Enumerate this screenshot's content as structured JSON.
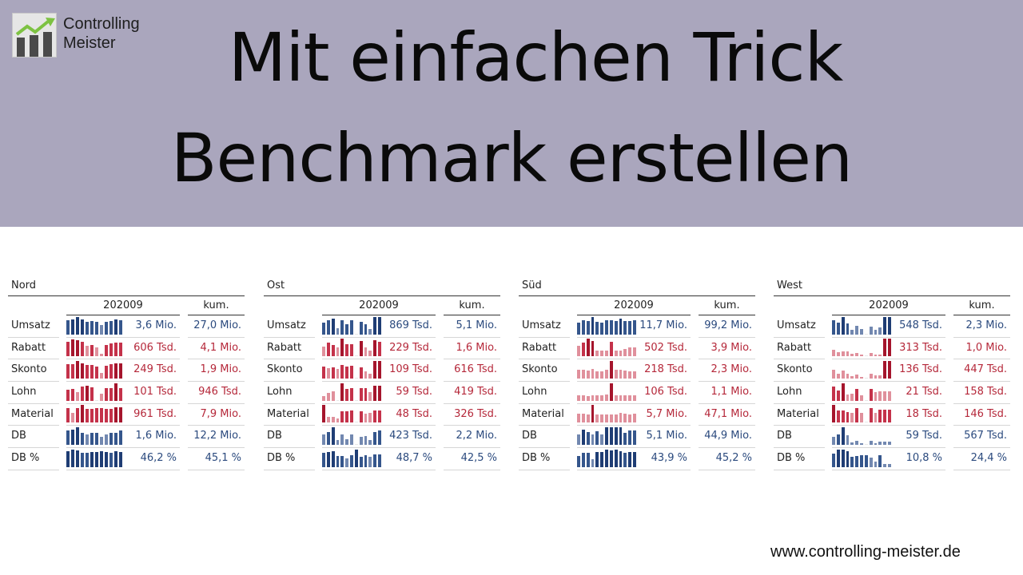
{
  "logo": {
    "line1": "Controlling",
    "line2": "Meister"
  },
  "title": {
    "line1": "Mit einfachen Trick",
    "line2": "Benchmark erstellen"
  },
  "colors": {
    "banner": "#aaa6bd",
    "blue_dark": "#1f3d74",
    "blue_light": "#7288b0",
    "red_dark": "#a5152c",
    "red_light": "#e0909c",
    "text_pos": "#2b4a7e",
    "text_neg": "#b5283a"
  },
  "panels": [
    {
      "name": "Nord",
      "period": "202009",
      "kum_label": "kum.",
      "rows": [
        {
          "label": "Umsatz",
          "value": "3,6 Mio.",
          "kum": "27,0 Mio.",
          "sign": "pos",
          "bars": [
            80,
            88,
            100,
            85,
            72,
            76,
            72,
            55,
            72,
            76,
            86,
            82
          ]
        },
        {
          "label": "Rabatt",
          "value": "606 Tsd.",
          "kum": "4,1 Mio.",
          "sign": "neg",
          "bars": [
            80,
            95,
            92,
            82,
            58,
            62,
            50,
            15,
            62,
            72,
            76,
            76
          ]
        },
        {
          "label": "Skonto",
          "value": "249 Tsd.",
          "kum": "1,9 Mio.",
          "sign": "neg",
          "bars": [
            82,
            82,
            100,
            86,
            76,
            76,
            70,
            30,
            72,
            84,
            88,
            88
          ]
        },
        {
          "label": "Lohn",
          "value": "101 Tsd.",
          "kum": "946 Tsd.",
          "sign": "neg",
          "bars": [
            64,
            66,
            50,
            82,
            88,
            78,
            0,
            42,
            72,
            72,
            100,
            72
          ]
        },
        {
          "label": "Material",
          "value": "961 Tsd.",
          "kum": "7,9 Mio.",
          "sign": "neg",
          "bars": [
            80,
            56,
            84,
            100,
            76,
            76,
            82,
            80,
            76,
            76,
            86,
            86
          ]
        },
        {
          "label": "DB",
          "value": "1,6 Mio.",
          "kum": "12,2 Mio.",
          "sign": "pos",
          "bars": [
            80,
            88,
            100,
            70,
            58,
            68,
            66,
            46,
            58,
            68,
            66,
            82
          ]
        },
        {
          "label": "DB %",
          "value": "46,2 %",
          "kum": "45,1 %",
          "sign": "pos",
          "bars": [
            90,
            100,
            96,
            82,
            80,
            88,
            88,
            90,
            86,
            84,
            90,
            88
          ]
        }
      ]
    },
    {
      "name": "Ost",
      "period": "202009",
      "kum_label": "kum.",
      "rows": [
        {
          "label": "Umsatz",
          "value": "869 Tsd.",
          "kum": "5,1 Mio.",
          "sign": "pos",
          "bars": [
            70,
            82,
            90,
            36,
            82,
            60,
            80,
            0,
            74,
            60,
            34,
            100,
            100
          ]
        },
        {
          "label": "Rabatt",
          "value": "229 Tsd.",
          "kum": "1,6 Mio.",
          "sign": "neg",
          "bars": [
            56,
            76,
            62,
            50,
            100,
            66,
            68,
            0,
            88,
            50,
            34,
            90,
            84
          ]
        },
        {
          "label": "Skonto",
          "value": "109 Tsd.",
          "kum": "616 Tsd.",
          "sign": "neg",
          "bars": [
            70,
            58,
            62,
            56,
            78,
            68,
            72,
            0,
            62,
            40,
            28,
            100,
            100
          ]
        },
        {
          "label": "Lohn",
          "value": "59 Tsd.",
          "kum": "419 Tsd.",
          "sign": "neg",
          "bars": [
            26,
            44,
            56,
            0,
            100,
            70,
            74,
            0,
            72,
            72,
            50,
            86,
            86
          ]
        },
        {
          "label": "Material",
          "value": "48 Tsd.",
          "kum": "326 Tsd.",
          "sign": "neg",
          "bars": [
            100,
            30,
            30,
            22,
            64,
            64,
            68,
            0,
            64,
            52,
            54,
            70,
            70
          ]
        },
        {
          "label": "DB",
          "value": "423 Tsd.",
          "kum": "2,2 Mio.",
          "sign": "pos",
          "bars": [
            58,
            72,
            100,
            26,
            58,
            30,
            58,
            0,
            46,
            48,
            26,
            74,
            82
          ]
        },
        {
          "label": "DB %",
          "value": "48,7 %",
          "kum": "42,5 %",
          "sign": "pos",
          "bars": [
            82,
            88,
            92,
            64,
            64,
            50,
            70,
            100,
            60,
            70,
            58,
            72,
            72
          ]
        }
      ]
    },
    {
      "name": "Süd",
      "period": "202009",
      "kum_label": "kum.",
      "rows": [
        {
          "label": "Umsatz",
          "value": "11,7 Mio.",
          "kum": "99,2 Mio.",
          "sign": "pos",
          "bars": [
            70,
            80,
            78,
            100,
            74,
            70,
            80,
            80,
            78,
            90,
            78,
            76,
            80
          ]
        },
        {
          "label": "Rabatt",
          "value": "502 Tsd.",
          "kum": "3,9 Mio.",
          "sign": "neg",
          "bars": [
            58,
            78,
            100,
            88,
            30,
            30,
            30,
            80,
            30,
            30,
            40,
            48,
            48
          ]
        },
        {
          "label": "Skonto",
          "value": "218 Tsd.",
          "kum": "2,3 Mio.",
          "sign": "neg",
          "bars": [
            50,
            50,
            44,
            56,
            40,
            40,
            52,
            100,
            48,
            48,
            46,
            40,
            40
          ]
        },
        {
          "label": "Lohn",
          "value": "106 Tsd.",
          "kum": "1,1 Mio.",
          "sign": "neg",
          "bars": [
            30,
            32,
            26,
            30,
            32,
            34,
            38,
            100,
            30,
            30,
            30,
            30,
            30
          ]
        },
        {
          "label": "Material",
          "value": "5,7 Mio.",
          "kum": "47,1 Mio.",
          "sign": "neg",
          "bars": [
            48,
            52,
            46,
            100,
            46,
            46,
            46,
            46,
            46,
            56,
            50,
            46,
            50
          ]
        },
        {
          "label": "DB",
          "value": "5,1 Mio.",
          "kum": "44,9 Mio.",
          "sign": "pos",
          "bars": [
            58,
            86,
            74,
            58,
            76,
            58,
            100,
            100,
            100,
            100,
            70,
            82,
            82
          ]
        },
        {
          "label": "DB %",
          "value": "43,9 %",
          "kum": "45,2 %",
          "sign": "pos",
          "bars": [
            64,
            84,
            80,
            46,
            86,
            86,
            100,
            96,
            100,
            92,
            84,
            86,
            86
          ]
        }
      ]
    },
    {
      "name": "West",
      "period": "202009",
      "kum_label": "kum.",
      "rows": [
        {
          "label": "Umsatz",
          "value": "548 Tsd.",
          "kum": "2,3 Mio.",
          "sign": "pos",
          "bars": [
            80,
            70,
            100,
            62,
            26,
            52,
            30,
            0,
            46,
            26,
            40,
            100,
            100
          ]
        },
        {
          "label": "Rabatt",
          "value": "313 Tsd.",
          "kum": "1,0 Mio.",
          "sign": "neg",
          "bars": [
            36,
            24,
            26,
            26,
            14,
            20,
            10,
            0,
            20,
            10,
            10,
            100,
            100
          ]
        },
        {
          "label": "Skonto",
          "value": "136 Tsd.",
          "kum": "447 Tsd.",
          "sign": "neg",
          "bars": [
            50,
            28,
            44,
            28,
            14,
            22,
            8,
            0,
            28,
            20,
            20,
            100,
            100
          ]
        },
        {
          "label": "Lohn",
          "value": "21 Tsd.",
          "kum": "158 Tsd.",
          "sign": "neg",
          "bars": [
            80,
            60,
            100,
            36,
            42,
            68,
            30,
            0,
            66,
            50,
            56,
            56,
            56
          ]
        },
        {
          "label": "Material",
          "value": "18 Tsd.",
          "kum": "146 Tsd.",
          "sign": "neg",
          "bars": [
            100,
            68,
            70,
            60,
            56,
            80,
            56,
            0,
            80,
            56,
            72,
            72,
            72
          ]
        },
        {
          "label": "DB",
          "value": "59 Tsd.",
          "kum": "567 Tsd.",
          "sign": "pos",
          "bars": [
            46,
            60,
            100,
            56,
            14,
            22,
            8,
            0,
            24,
            8,
            20,
            20,
            16
          ]
        },
        {
          "label": "DB %",
          "value": "10,8 %",
          "kum": "24,4 %",
          "sign": "pos",
          "bars": [
            76,
            100,
            100,
            90,
            60,
            64,
            66,
            70,
            56,
            30,
            66,
            16,
            16
          ]
        }
      ]
    }
  ],
  "footer": {
    "url": "www.controlling-meister.de"
  }
}
